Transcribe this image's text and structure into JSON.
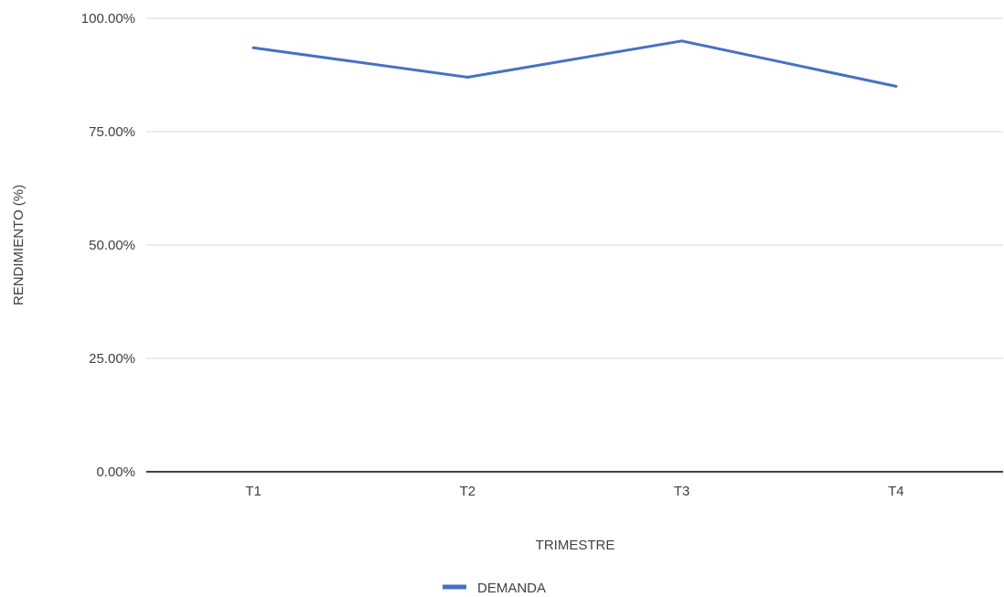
{
  "chart_data": {
    "type": "line",
    "title": "",
    "xlabel": "TRIMESTRE",
    "ylabel": "RENDIMIENTO (%)",
    "categories": [
      "T1",
      "T2",
      "T3",
      "T4"
    ],
    "series": [
      {
        "name": "DEMANDA",
        "values": [
          93.5,
          87.0,
          95.0,
          85.0
        ],
        "color": "#4472C4"
      }
    ],
    "ylim": [
      0,
      100
    ],
    "yticks": [
      0,
      25,
      50,
      75,
      100
    ],
    "ytick_labels": [
      "0.00%",
      "25.00%",
      "50.00%",
      "75.00%",
      "100.00%"
    ],
    "grid": true,
    "legend_position": "bottom"
  }
}
